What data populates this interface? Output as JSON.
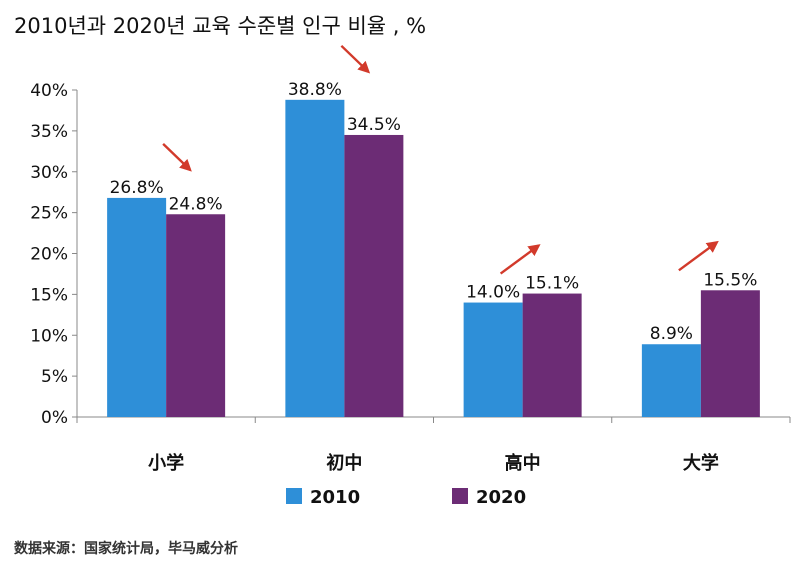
{
  "title": "2010년과 2020년 교육 수준별 인구 비율 , %",
  "source": "数据来源：国家统计局，毕马威分析",
  "chart_data": {
    "type": "bar",
    "categories": [
      "小学",
      "初中",
      "高中",
      "大学"
    ],
    "series": [
      {
        "name": "2010",
        "values": [
          26.8,
          38.8,
          14.0,
          8.9
        ],
        "labels": [
          "26.8%",
          "38.8%",
          "14.0%",
          "8.9%"
        ],
        "color": "#2E8FD8"
      },
      {
        "name": "2020",
        "values": [
          24.8,
          34.5,
          15.1,
          15.5
        ],
        "labels": [
          "24.8%",
          "34.5%",
          "15.1%",
          "15.5%"
        ],
        "color": "#6C2C75"
      }
    ],
    "ylim": [
      0,
      40
    ],
    "yticks": [
      "0%",
      "5%",
      "10%",
      "15%",
      "20%",
      "25%",
      "30%",
      "35%",
      "40%"
    ],
    "trend_arrows": [
      "down",
      "down",
      "up",
      "up"
    ],
    "arrow_color": "#D23A2B",
    "grid": false,
    "legend_position": "bottom"
  }
}
